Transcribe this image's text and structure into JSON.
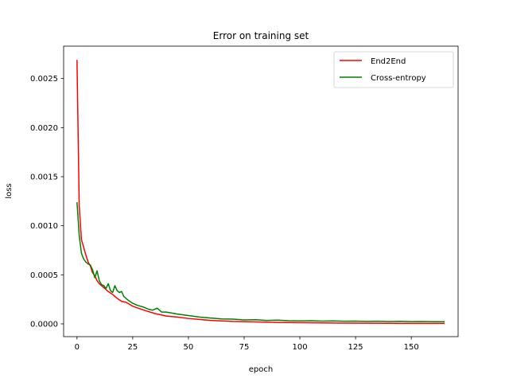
{
  "chart_data": {
    "type": "line",
    "title": "Error on training set",
    "xlabel": "epoch",
    "ylabel": "loss",
    "xlim": [
      -6,
      171
    ],
    "ylim": [
      -0.00013,
      0.00283
    ],
    "grid": false,
    "legend_position": "top-right",
    "x_ticks": [
      0,
      25,
      50,
      75,
      100,
      125,
      150
    ],
    "x_tick_labels": [
      "0",
      "25",
      "50",
      "75",
      "100",
      "125",
      "150"
    ],
    "y_ticks": [
      0.0,
      0.0005,
      0.001,
      0.0015,
      0.002,
      0.0025
    ],
    "y_tick_labels": [
      "0.0000",
      "0.0005",
      "0.0010",
      "0.0015",
      "0.0020",
      "0.0025"
    ],
    "series": [
      {
        "name": "End2End",
        "color": "#ff0000",
        "points": [
          [
            0,
            0.00269
          ],
          [
            1,
            0.0012
          ],
          [
            2,
            0.00086
          ],
          [
            3,
            0.00078
          ],
          [
            4,
            0.0007
          ],
          [
            5,
            0.00063
          ],
          [
            6,
            0.00059
          ],
          [
            7,
            0.00052
          ],
          [
            8,
            0.00049
          ],
          [
            9,
            0.00044
          ],
          [
            10,
            0.00041
          ],
          [
            12,
            0.00037
          ],
          [
            14,
            0.00033
          ],
          [
            16,
            0.0003
          ],
          [
            18,
            0.00026
          ],
          [
            20,
            0.00023
          ],
          [
            22,
            0.00022
          ],
          [
            25,
            0.00018
          ],
          [
            30,
            0.00014
          ],
          [
            35,
            0.000105
          ],
          [
            40,
            8e-05
          ],
          [
            45,
            7e-05
          ],
          [
            50,
            5.5e-05
          ],
          [
            55,
            4.5e-05
          ],
          [
            60,
            3.5e-05
          ],
          [
            70,
            2.5e-05
          ],
          [
            80,
            2e-05
          ],
          [
            90,
            1.5e-05
          ],
          [
            100,
            1.2e-05
          ],
          [
            110,
            1e-05
          ],
          [
            120,
            8e-06
          ],
          [
            130,
            7e-06
          ],
          [
            140,
            6e-06
          ],
          [
            150,
            5e-06
          ],
          [
            160,
            5e-06
          ],
          [
            165,
            5e-06
          ]
        ]
      },
      {
        "name": "Cross-entropy",
        "color": "#008000",
        "points": [
          [
            0,
            0.00124
          ],
          [
            1,
            0.0009
          ],
          [
            2,
            0.00072
          ],
          [
            3,
            0.00066
          ],
          [
            4,
            0.00063
          ],
          [
            5,
            0.00061
          ],
          [
            6,
            0.0006
          ],
          [
            7,
            0.00055
          ],
          [
            8,
            0.00047
          ],
          [
            9,
            0.00054
          ],
          [
            10,
            0.00044
          ],
          [
            11,
            0.0004
          ],
          [
            12,
            0.00039
          ],
          [
            13,
            0.00036
          ],
          [
            14,
            0.00041
          ],
          [
            15,
            0.00034
          ],
          [
            16,
            0.00032
          ],
          [
            17,
            0.00039
          ],
          [
            18,
            0.00034
          ],
          [
            19,
            0.00032
          ],
          [
            20,
            0.00033
          ],
          [
            21,
            0.00028
          ],
          [
            22,
            0.00026
          ],
          [
            23,
            0.00024
          ],
          [
            25,
            0.00021
          ],
          [
            27,
            0.00019
          ],
          [
            30,
            0.00017
          ],
          [
            32,
            0.00015
          ],
          [
            34,
            0.00014
          ],
          [
            36,
            0.00016
          ],
          [
            38,
            0.00012
          ],
          [
            40,
            0.00012
          ],
          [
            45,
            0.0001
          ],
          [
            50,
            8.5e-05
          ],
          [
            55,
            7e-05
          ],
          [
            60,
            6e-05
          ],
          [
            65,
            5e-05
          ],
          [
            70,
            4.8e-05
          ],
          [
            75,
            4e-05
          ],
          [
            80,
            4.2e-05
          ],
          [
            85,
            3.5e-05
          ],
          [
            90,
            3.8e-05
          ],
          [
            95,
            3.2e-05
          ],
          [
            100,
            3e-05
          ],
          [
            105,
            3.2e-05
          ],
          [
            110,
            2.8e-05
          ],
          [
            115,
            3e-05
          ],
          [
            120,
            2.7e-05
          ],
          [
            125,
            2.8e-05
          ],
          [
            130,
            2.5e-05
          ],
          [
            135,
            2.7e-05
          ],
          [
            140,
            2.4e-05
          ],
          [
            145,
            2.6e-05
          ],
          [
            150,
            2.3e-05
          ],
          [
            155,
            2.4e-05
          ],
          [
            160,
            2.2e-05
          ],
          [
            165,
            2.2e-05
          ]
        ]
      }
    ]
  }
}
